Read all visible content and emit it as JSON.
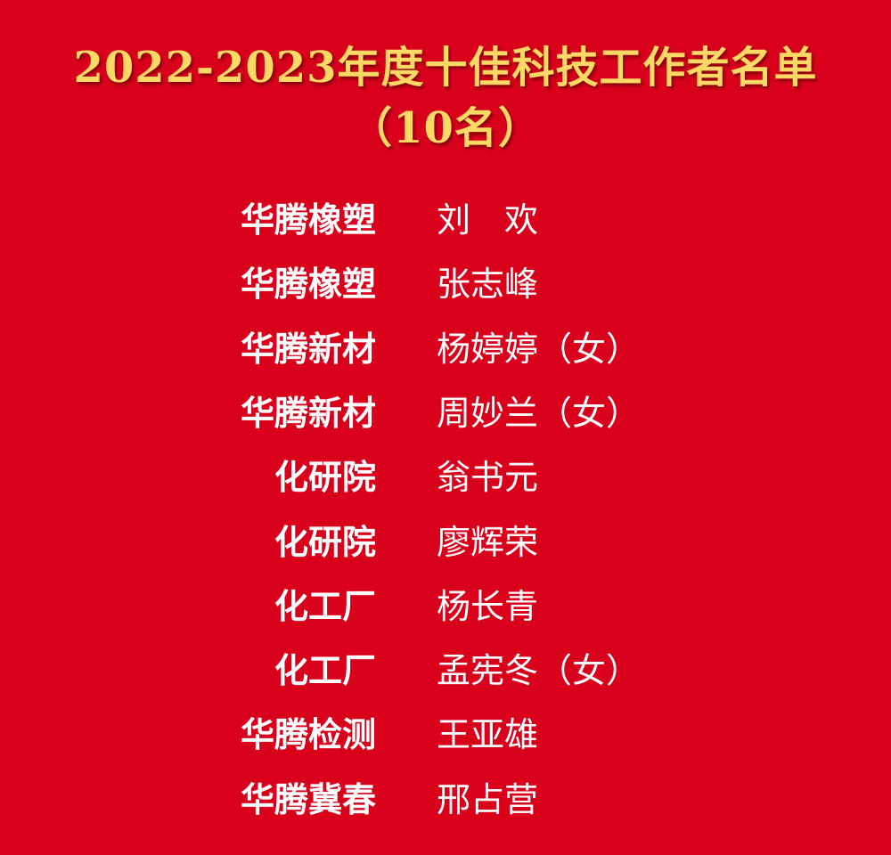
{
  "title": "2022-2023年度十佳科技工作者名单",
  "subtitle": "（10名）",
  "colors": {
    "background": "#d9001b",
    "title": "#fcd864",
    "text": "#ffffff"
  },
  "entries": [
    {
      "org": "华腾橡塑",
      "name": "刘　欢"
    },
    {
      "org": "华腾橡塑",
      "name": "张志峰"
    },
    {
      "org": "华腾新材",
      "name": "杨婷婷（女）"
    },
    {
      "org": "华腾新材",
      "name": "周妙兰（女）"
    },
    {
      "org": "化研院",
      "name": "翁书元"
    },
    {
      "org": "化研院",
      "name": "廖辉荣"
    },
    {
      "org": "化工厂",
      "name": "杨长青"
    },
    {
      "org": "化工厂",
      "name": "孟宪冬（女）"
    },
    {
      "org": "华腾检测",
      "name": "王亚雄"
    },
    {
      "org": "华腾冀春",
      "name": "邢占营"
    }
  ]
}
